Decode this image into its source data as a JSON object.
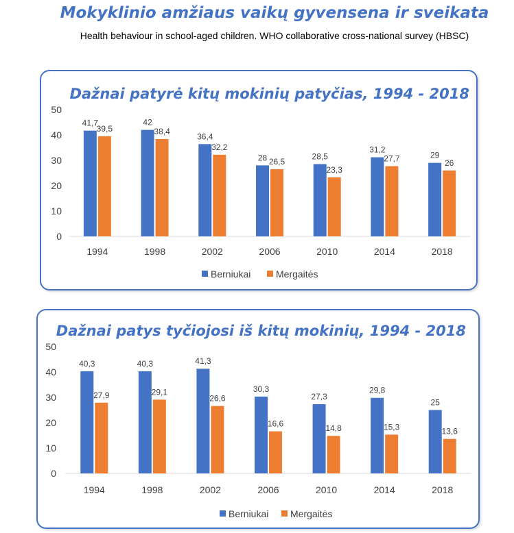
{
  "header": {
    "title": "Mokyklinio amžiaus vaikų gyvensena ir sveikata",
    "subtitle": "Health behaviour in school-aged children. WHO collaborative cross-national survey (HBSC)"
  },
  "colors": {
    "boys": "#4472C4",
    "girls": "#ED7D31",
    "accent": "#4472C4"
  },
  "chart_data": [
    {
      "type": "bar",
      "title": "Dažnai patyrė kitų mokinių patyčias, 1994 - 2018",
      "xlabel": "",
      "ylabel": "",
      "categories": [
        "1994",
        "1998",
        "2002",
        "2006",
        "2010",
        "2014",
        "2018"
      ],
      "series": [
        {
          "name": "Berniukai",
          "values": [
            41.7,
            42,
            36.4,
            28,
            28.5,
            31.2,
            29
          ],
          "labels": [
            "41,7",
            "42",
            "36,4",
            "28",
            "28,5",
            "31,2",
            "29"
          ]
        },
        {
          "name": "Mergaitės",
          "values": [
            39.5,
            38.4,
            32.2,
            26.5,
            23.3,
            27.7,
            26
          ],
          "labels": [
            "39,5",
            "38,4",
            "32,2",
            "26,5",
            "23,3",
            "27,7",
            "26"
          ]
        }
      ],
      "ylim": [
        0,
        50
      ],
      "yticks": [
        "0",
        "10",
        "20",
        "30",
        "40",
        "50"
      ],
      "grid": false,
      "legend": "bottom"
    },
    {
      "type": "bar",
      "title": "Dažnai patys tyčiojosi iš kitų mokinių, 1994 - 2018",
      "xlabel": "",
      "ylabel": "",
      "categories": [
        "1994",
        "1998",
        "2002",
        "2006",
        "2010",
        "2014",
        "2018"
      ],
      "series": [
        {
          "name": "Berniukai",
          "values": [
            40.3,
            40.3,
            41.3,
            30.3,
            27.3,
            29.8,
            25
          ],
          "labels": [
            "40,3",
            "40,3",
            "41,3",
            "30,3",
            "27,3",
            "29,8",
            "25"
          ]
        },
        {
          "name": "Mergaitės",
          "values": [
            27.9,
            29.1,
            26.6,
            16.6,
            14.8,
            15.3,
            13.6
          ],
          "labels": [
            "27,9",
            "29,1",
            "26,6",
            "16,6",
            "14,8",
            "15,3",
            "13,6"
          ]
        }
      ],
      "ylim": [
        0,
        50
      ],
      "yticks": [
        "0",
        "10",
        "20",
        "30",
        "40",
        "50"
      ],
      "grid": false,
      "legend": "bottom"
    }
  ]
}
